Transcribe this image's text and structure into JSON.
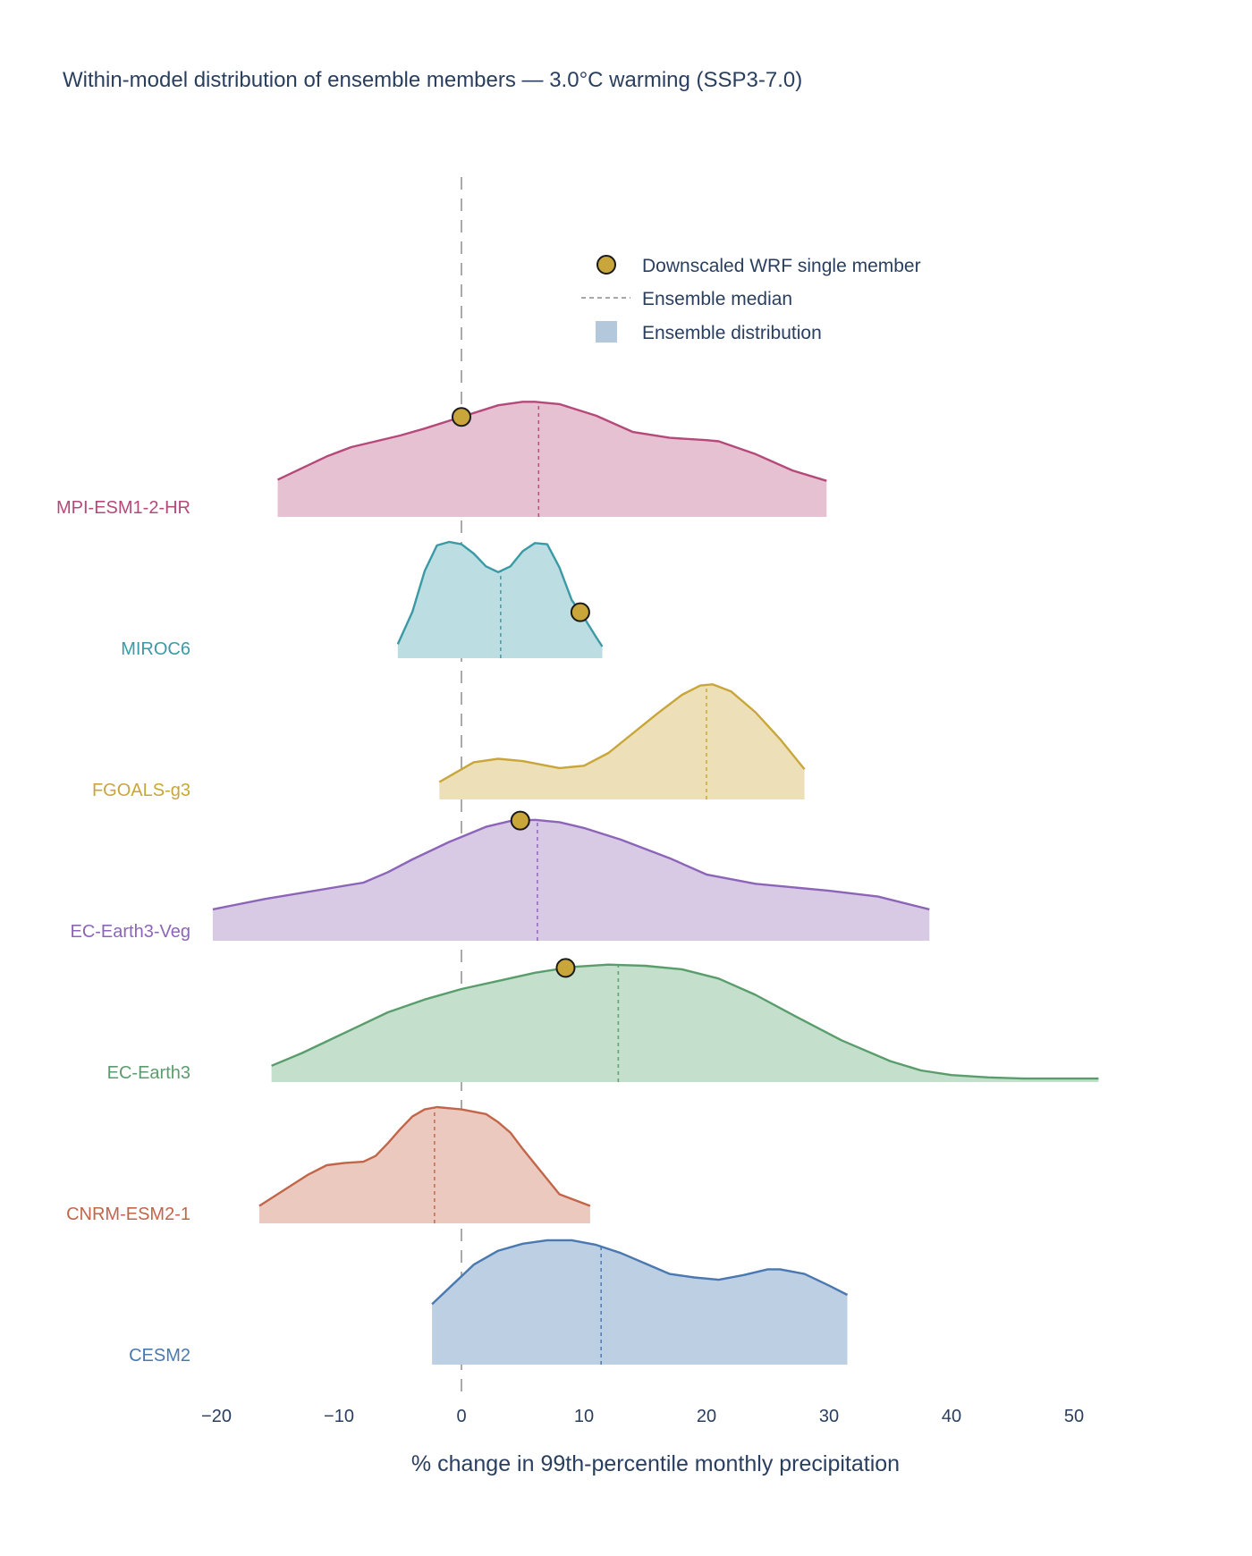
{
  "chart_data": {
    "type": "ridgeline",
    "title": "Within-model distribution of ensemble members — 3.0°C warming (SSP3-7.0)",
    "xlabel": "% change in 99th-percentile monthly precipitation",
    "xlim": [
      -20,
      57
    ],
    "xticks": [
      -20,
      -10,
      0,
      10,
      20,
      30,
      40,
      50
    ],
    "xtick_labels": [
      "−20",
      "−10",
      "0",
      "10",
      "20",
      "30",
      "40",
      "50"
    ],
    "zero_line": 0,
    "legend": {
      "placement": "top-right",
      "items": [
        {
          "label": "Downscaled WRF single member",
          "kind": "marker"
        },
        {
          "label": "Ensemble median",
          "kind": "dashed-line"
        },
        {
          "label": "Ensemble distribution",
          "kind": "area"
        }
      ]
    },
    "series": [
      {
        "name": "MPI-ESM1-2-HR",
        "color": "#b4497a",
        "fill": "#e6c1d2",
        "median": 6.3,
        "wrf": 0.0,
        "density": [
          [
            -15,
            0.32
          ],
          [
            -11,
            0.52
          ],
          [
            -9,
            0.6
          ],
          [
            -5,
            0.7
          ],
          [
            -3,
            0.76
          ],
          [
            0,
            0.86
          ],
          [
            3,
            0.96
          ],
          [
            5,
            0.99
          ],
          [
            6,
            0.99
          ],
          [
            8,
            0.97
          ],
          [
            11,
            0.87
          ],
          [
            14,
            0.73
          ],
          [
            17,
            0.68
          ],
          [
            20,
            0.66
          ],
          [
            21,
            0.65
          ],
          [
            24,
            0.54
          ],
          [
            27,
            0.4
          ],
          [
            29.8,
            0.31
          ]
        ]
      },
      {
        "name": "MIROC6",
        "color": "#3a9aa5",
        "fill": "#bcdde2",
        "median": 3.2,
        "wrf": 9.7,
        "density": [
          [
            -5.2,
            0.12
          ],
          [
            -4,
            0.4
          ],
          [
            -3,
            0.75
          ],
          [
            -2,
            0.97
          ],
          [
            -1,
            1.0
          ],
          [
            0,
            0.98
          ],
          [
            1,
            0.9
          ],
          [
            2,
            0.79
          ],
          [
            3,
            0.74
          ],
          [
            4,
            0.79
          ],
          [
            5,
            0.92
          ],
          [
            6,
            0.99
          ],
          [
            7,
            0.98
          ],
          [
            8,
            0.78
          ],
          [
            9,
            0.5
          ],
          [
            10,
            0.35
          ],
          [
            11,
            0.18
          ],
          [
            11.5,
            0.1
          ]
        ]
      },
      {
        "name": "FGOALS-g3",
        "color": "#c9a63a",
        "fill": "#ede0b9",
        "median": 20.0,
        "wrf": null,
        "density": [
          [
            -1.8,
            0.15
          ],
          [
            1,
            0.32
          ],
          [
            3,
            0.35
          ],
          [
            5,
            0.33
          ],
          [
            8,
            0.27
          ],
          [
            10,
            0.29
          ],
          [
            12,
            0.4
          ],
          [
            14,
            0.57
          ],
          [
            16,
            0.74
          ],
          [
            18,
            0.9
          ],
          [
            19.5,
            0.98
          ],
          [
            20.5,
            0.99
          ],
          [
            22,
            0.93
          ],
          [
            24,
            0.75
          ],
          [
            26,
            0.52
          ],
          [
            28,
            0.26
          ]
        ]
      },
      {
        "name": "EC-Earth3-Veg",
        "color": "#8d65b8",
        "fill": "#d8c9e5",
        "median": 6.2,
        "wrf": 4.8,
        "density": [
          [
            -20.3,
            0.27
          ],
          [
            -16,
            0.36
          ],
          [
            -8,
            0.5
          ],
          [
            -6,
            0.59
          ],
          [
            -4,
            0.7
          ],
          [
            -1,
            0.85
          ],
          [
            2,
            0.98
          ],
          [
            4,
            1.03
          ],
          [
            6,
            1.04
          ],
          [
            8,
            1.02
          ],
          [
            10,
            0.97
          ],
          [
            13,
            0.87
          ],
          [
            17,
            0.71
          ],
          [
            20,
            0.57
          ],
          [
            24,
            0.49
          ],
          [
            30,
            0.43
          ],
          [
            34,
            0.38
          ],
          [
            38.2,
            0.27
          ]
        ]
      },
      {
        "name": "EC-Earth3",
        "color": "#5a9d6c",
        "fill": "#c4dfcc",
        "median": 12.8,
        "wrf": 8.5,
        "density": [
          [
            -15.5,
            0.14
          ],
          [
            -13,
            0.25
          ],
          [
            -10,
            0.4
          ],
          [
            -6,
            0.6
          ],
          [
            -3,
            0.71
          ],
          [
            0,
            0.8
          ],
          [
            3,
            0.87
          ],
          [
            6,
            0.94
          ],
          [
            9,
            0.99
          ],
          [
            12,
            1.01
          ],
          [
            15,
            1.0
          ],
          [
            18,
            0.97
          ],
          [
            21,
            0.89
          ],
          [
            24,
            0.75
          ],
          [
            27,
            0.58
          ],
          [
            31,
            0.36
          ],
          [
            35,
            0.18
          ],
          [
            37.5,
            0.1
          ],
          [
            40,
            0.06
          ],
          [
            43,
            0.04
          ],
          [
            46,
            0.03
          ],
          [
            52,
            0.03
          ]
        ]
      },
      {
        "name": "CNRM-ESM2-1",
        "color": "#c2664a",
        "fill": "#ecc9bf",
        "median": -2.2,
        "wrf": null,
        "density": [
          [
            -16.5,
            0.15
          ],
          [
            -12.5,
            0.42
          ],
          [
            -11,
            0.5
          ],
          [
            -9.5,
            0.52
          ],
          [
            -8,
            0.53
          ],
          [
            -7,
            0.58
          ],
          [
            -6,
            0.69
          ],
          [
            -5,
            0.81
          ],
          [
            -4,
            0.92
          ],
          [
            -3,
            0.98
          ],
          [
            -2,
            1.0
          ],
          [
            0,
            0.98
          ],
          [
            2,
            0.94
          ],
          [
            3,
            0.87
          ],
          [
            4,
            0.78
          ],
          [
            5,
            0.64
          ],
          [
            6,
            0.51
          ],
          [
            8,
            0.25
          ],
          [
            10.5,
            0.15
          ]
        ]
      },
      {
        "name": "CESM2",
        "color": "#4a78b0",
        "fill": "#bdcfe2",
        "median": 11.4,
        "wrf": null,
        "density": [
          [
            -2.4,
            0.52
          ],
          [
            0,
            0.76
          ],
          [
            1,
            0.86
          ],
          [
            3,
            0.98
          ],
          [
            5,
            1.04
          ],
          [
            7,
            1.07
          ],
          [
            9,
            1.07
          ],
          [
            11,
            1.03
          ],
          [
            13,
            0.96
          ],
          [
            15,
            0.87
          ],
          [
            17,
            0.78
          ],
          [
            19,
            0.75
          ],
          [
            21,
            0.73
          ],
          [
            23,
            0.77
          ],
          [
            25,
            0.82
          ],
          [
            26,
            0.82
          ],
          [
            28,
            0.78
          ],
          [
            30,
            0.68
          ],
          [
            31.5,
            0.6
          ]
        ]
      }
    ]
  }
}
